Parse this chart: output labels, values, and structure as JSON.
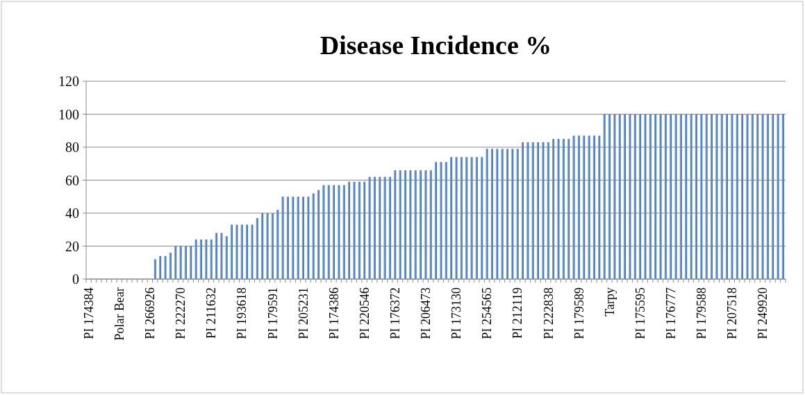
{
  "chart_data": {
    "type": "bar",
    "title": "Disease Incidence %",
    "categories": [
      "PI 174384",
      null,
      null,
      null,
      null,
      null,
      "Polar Bear",
      null,
      null,
      null,
      null,
      null,
      "PI 266926",
      null,
      null,
      null,
      null,
      null,
      "PI 222270",
      null,
      null,
      null,
      null,
      null,
      "PI 211632",
      null,
      null,
      null,
      null,
      null,
      "PI 193618",
      null,
      null,
      null,
      null,
      null,
      "PI 179591",
      null,
      null,
      null,
      null,
      null,
      "PI 205231",
      null,
      null,
      null,
      null,
      null,
      "PI 174386",
      null,
      null,
      null,
      null,
      null,
      "PI 220546",
      null,
      null,
      null,
      null,
      null,
      "PI 176372",
      null,
      null,
      null,
      null,
      null,
      "PI 206473",
      null,
      null,
      null,
      null,
      null,
      "PI 173130",
      null,
      null,
      null,
      null,
      null,
      "PI 254565",
      null,
      null,
      null,
      null,
      null,
      "PI 212119",
      null,
      null,
      null,
      null,
      null,
      "PI 222838",
      null,
      null,
      null,
      null,
      null,
      "PI 179589",
      null,
      null,
      null,
      null,
      null,
      "Tarpy",
      null,
      null,
      null,
      null,
      null,
      "PI 175595",
      null,
      null,
      null,
      null,
      null,
      "PI 176777",
      null,
      null,
      null,
      null,
      null,
      "PI 179588",
      null,
      null,
      null,
      null,
      null,
      "PI 207518",
      null,
      null,
      null,
      null,
      null,
      "PI 249920",
      null,
      null,
      null,
      null
    ],
    "values": [
      0,
      0,
      0,
      0,
      0,
      0,
      0,
      0,
      0,
      0,
      0,
      0,
      0,
      12,
      14,
      14,
      16,
      20,
      20,
      20,
      20,
      24,
      24,
      24,
      24,
      28,
      28,
      26,
      33,
      33,
      33,
      33,
      33,
      37,
      40,
      40,
      40,
      42,
      50,
      50,
      50,
      50,
      50,
      50,
      52,
      54,
      57,
      57,
      57,
      57,
      57,
      59,
      59,
      59,
      59,
      62,
      62,
      62,
      62,
      62,
      66,
      66,
      66,
      66,
      66,
      66,
      66,
      66,
      71,
      71,
      71,
      74,
      74,
      74,
      74,
      74,
      74,
      74,
      79,
      79,
      79,
      79,
      79,
      79,
      79,
      83,
      83,
      83,
      83,
      83,
      83,
      85,
      85,
      85,
      85,
      87,
      87,
      87,
      87,
      87,
      87,
      100,
      100,
      100,
      100,
      100,
      100,
      100,
      100,
      100,
      100,
      100,
      100,
      100,
      100,
      100,
      100,
      100,
      100,
      100,
      100,
      100,
      100,
      100,
      100,
      100,
      100,
      100,
      100,
      100,
      100,
      100,
      100,
      100,
      100,
      100,
      100
    ],
    "color": "#5b8bd0",
    "ylim": [
      0,
      120
    ],
    "yticks": [
      0,
      20,
      40,
      60,
      80,
      100,
      120
    ],
    "grid": "y"
  }
}
